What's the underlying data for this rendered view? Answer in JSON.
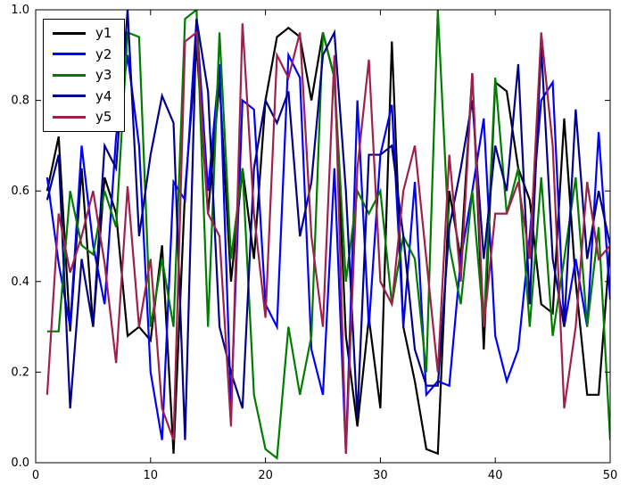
{
  "chart_data": {
    "type": "line",
    "title": "",
    "xlabel": "",
    "ylabel": "",
    "xlim": [
      0,
      50
    ],
    "ylim": [
      0.0,
      1.0
    ],
    "grid": false,
    "legend_position": "upper-left",
    "x_ticks": [
      {
        "v": 0,
        "label": "0"
      },
      {
        "v": 10,
        "label": "10"
      },
      {
        "v": 20,
        "label": "20"
      },
      {
        "v": 30,
        "label": "30"
      },
      {
        "v": 40,
        "label": "40"
      },
      {
        "v": 50,
        "label": "50"
      }
    ],
    "y_ticks": [
      {
        "v": 0.0,
        "label": "0.0"
      },
      {
        "v": 0.2,
        "label": "0.2"
      },
      {
        "v": 0.4,
        "label": "0.4"
      },
      {
        "v": 0.6,
        "label": "0.6"
      },
      {
        "v": 0.8,
        "label": "0.8"
      },
      {
        "v": 1.0,
        "label": "1.0"
      }
    ],
    "x": [
      1,
      2,
      3,
      4,
      5,
      6,
      7,
      8,
      9,
      10,
      11,
      12,
      13,
      14,
      15,
      16,
      17,
      18,
      19,
      20,
      21,
      22,
      23,
      24,
      25,
      26,
      27,
      28,
      29,
      30,
      31,
      32,
      33,
      34,
      35,
      36,
      37,
      38,
      39,
      40,
      41,
      42,
      43,
      44,
      45,
      46,
      47,
      48,
      49,
      50
    ],
    "series": [
      {
        "name": "y1",
        "color": "#000000",
        "values": [
          0.6,
          0.72,
          0.29,
          0.65,
          0.3,
          0.63,
          0.55,
          0.28,
          0.3,
          0.27,
          0.48,
          0.02,
          0.6,
          0.92,
          0.55,
          0.84,
          0.4,
          0.65,
          0.45,
          0.8,
          0.94,
          0.96,
          0.94,
          0.8,
          0.95,
          0.85,
          0.28,
          0.08,
          0.32,
          0.12,
          0.93,
          0.3,
          0.18,
          0.03,
          0.02,
          0.6,
          0.45,
          0.86,
          0.25,
          0.84,
          0.82,
          0.65,
          0.58,
          0.35,
          0.33,
          0.76,
          0.4,
          0.15,
          0.15,
          0.48
        ]
      },
      {
        "name": "y2",
        "color": "#0000ff",
        "values": [
          0.63,
          0.44,
          0.3,
          0.7,
          0.48,
          0.35,
          0.72,
          0.9,
          0.7,
          0.2,
          0.05,
          0.62,
          0.58,
          0.98,
          0.6,
          0.88,
          0.12,
          0.8,
          0.78,
          0.35,
          0.3,
          0.9,
          0.85,
          0.25,
          0.15,
          0.65,
          0.02,
          0.8,
          0.3,
          0.68,
          0.79,
          0.3,
          0.62,
          0.15,
          0.18,
          0.17,
          0.45,
          0.6,
          0.76,
          0.28,
          0.18,
          0.25,
          0.5,
          0.8,
          0.84,
          0.3,
          0.45,
          0.3,
          0.73,
          0.36
        ]
      },
      {
        "name": "y3",
        "color": "#007d00",
        "values": [
          0.29,
          0.29,
          0.6,
          0.48,
          0.46,
          0.6,
          0.52,
          0.95,
          0.94,
          0.3,
          0.45,
          0.3,
          0.98,
          1.0,
          0.3,
          0.95,
          0.45,
          0.65,
          0.15,
          0.03,
          0.01,
          0.3,
          0.15,
          0.28,
          0.95,
          0.85,
          0.4,
          0.6,
          0.55,
          0.6,
          0.35,
          0.5,
          0.45,
          0.2,
          1.0,
          0.48,
          0.35,
          0.6,
          0.3,
          0.85,
          0.55,
          0.65,
          0.3,
          0.63,
          0.28,
          0.45,
          0.63,
          0.3,
          0.52,
          0.05
        ]
      },
      {
        "name": "y4",
        "color": "#00008b",
        "values": [
          0.58,
          0.68,
          0.12,
          0.45,
          0.3,
          0.7,
          0.65,
          1.0,
          0.5,
          0.68,
          0.81,
          0.75,
          0.05,
          0.98,
          0.82,
          0.3,
          0.2,
          0.12,
          0.65,
          0.8,
          0.75,
          0.82,
          0.5,
          0.62,
          0.9,
          0.95,
          0.6,
          0.1,
          0.68,
          0.68,
          0.7,
          0.5,
          0.25,
          0.17,
          0.17,
          0.52,
          0.65,
          0.8,
          0.45,
          0.7,
          0.6,
          0.88,
          0.35,
          0.92,
          0.45,
          0.3,
          0.78,
          0.45,
          0.6,
          0.48
        ]
      },
      {
        "name": "y5",
        "color": "#a0204c",
        "values": [
          0.15,
          0.55,
          0.42,
          0.5,
          0.6,
          0.44,
          0.22,
          0.61,
          0.3,
          0.45,
          0.12,
          0.05,
          0.93,
          0.95,
          0.55,
          0.5,
          0.08,
          0.97,
          0.55,
          0.32,
          0.9,
          0.85,
          0.95,
          0.5,
          0.3,
          0.9,
          0.02,
          0.65,
          0.89,
          0.4,
          0.35,
          0.6,
          0.7,
          0.45,
          0.2,
          0.68,
          0.4,
          0.86,
          0.3,
          0.55,
          0.55,
          0.62,
          0.45,
          0.95,
          0.7,
          0.12,
          0.3,
          0.62,
          0.45,
          0.48
        ]
      }
    ]
  }
}
